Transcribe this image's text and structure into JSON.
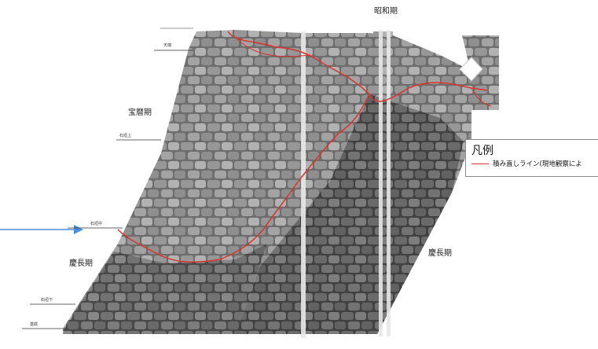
{
  "labels": {
    "showa": "昭和期",
    "hoeki": "宝暦期",
    "keicho_left": "慶長期",
    "keicho_right": "慶長期"
  },
  "level_lines": [
    "天端",
    "石垣上",
    "石垣中",
    "石垣下",
    "基底"
  ],
  "legend": {
    "title": "凡例",
    "item": "積み直しライン(現地観察によ"
  },
  "colors": {
    "restack_line": "#d9342b",
    "arrow": "#4a90d9",
    "stone": "#9a9a9a"
  }
}
